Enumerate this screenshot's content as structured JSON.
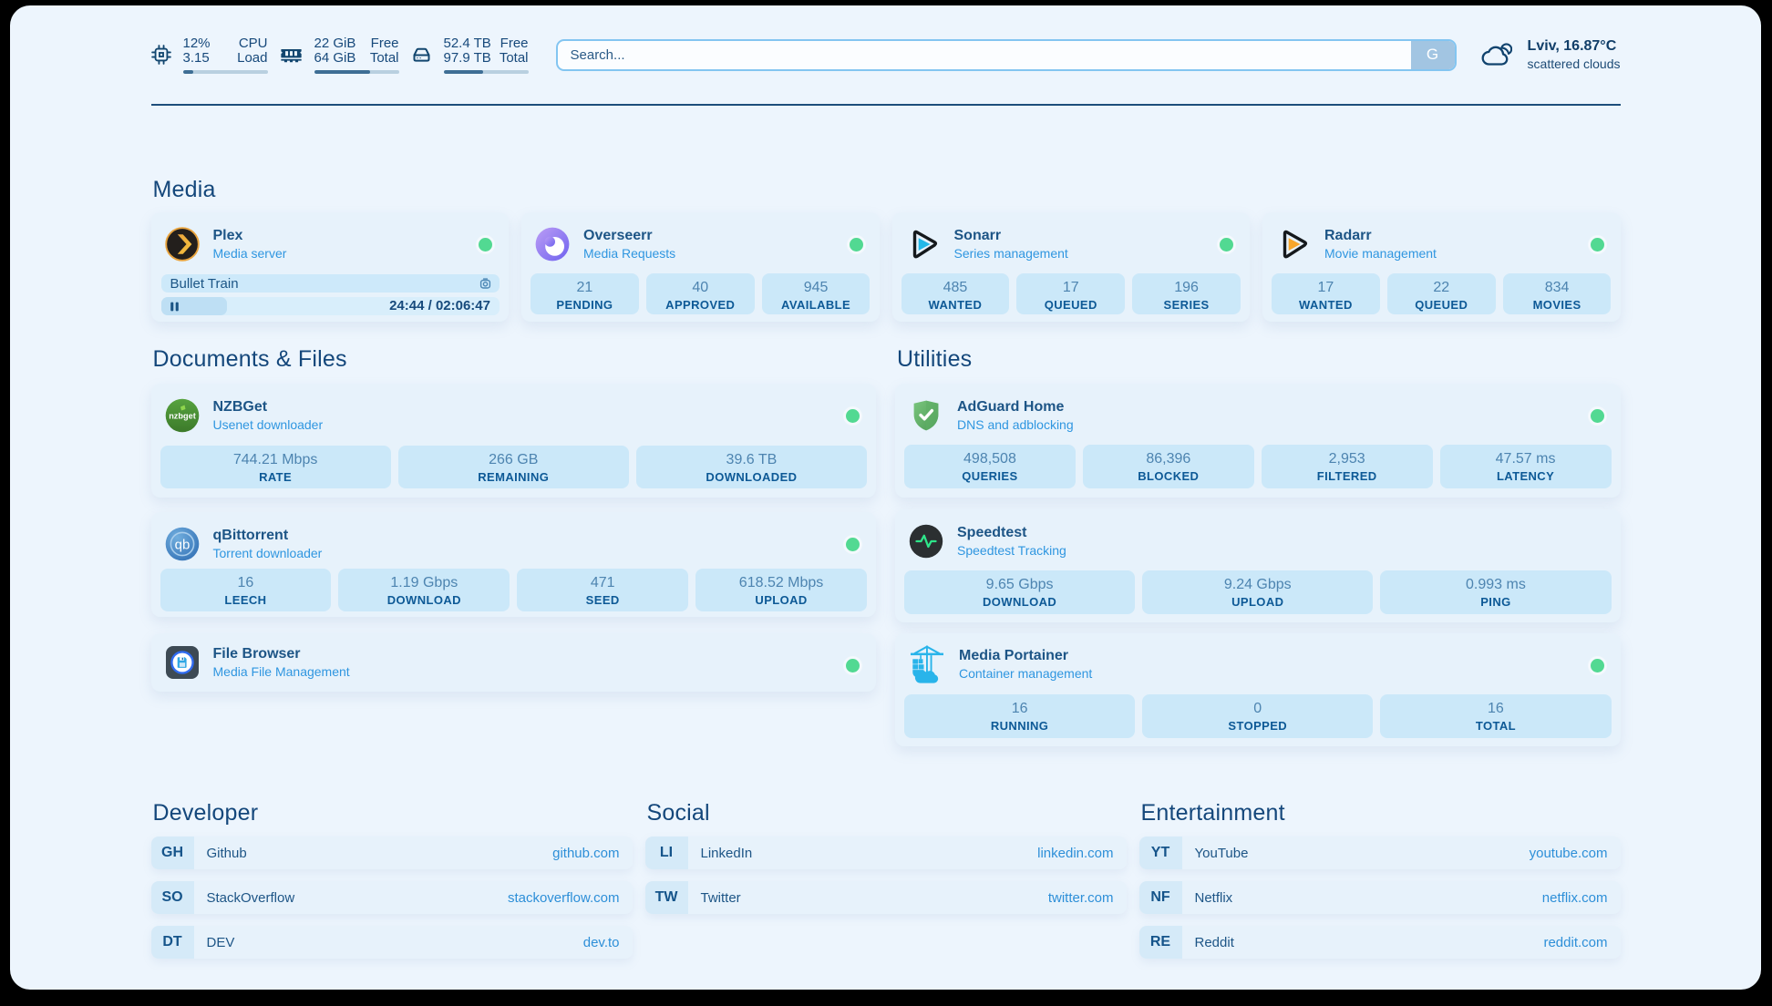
{
  "header": {
    "cpu": {
      "value1": "12%",
      "label1": "CPU",
      "value2": "3.15",
      "label2": "Load",
      "progress_pct": 12
    },
    "ram": {
      "value1": "22 GiB",
      "label1": "Free",
      "value2": "64 GiB",
      "label2": "Total",
      "progress_pct": 66
    },
    "disk": {
      "value1": "52.4 TB",
      "label1": "Free",
      "value2": "97.9 TB",
      "label2": "Total",
      "progress_pct": 46.5
    },
    "search": {
      "placeholder": "Search...",
      "button_label": "G"
    },
    "weather": {
      "location_temp": "Lviv, 16.87°C",
      "condition": "scattered clouds"
    }
  },
  "sections": {
    "media": {
      "title": "Media",
      "plex": {
        "title": "Plex",
        "subtitle": "Media server",
        "now_playing": "Bullet Train",
        "time_display": "24:44 / 02:06:47",
        "progress_pct": 19.5,
        "status": "online"
      },
      "overseerr": {
        "title": "Overseerr",
        "subtitle": "Media Requests",
        "status": "online",
        "stats": [
          {
            "value": "21",
            "label": "PENDING"
          },
          {
            "value": "40",
            "label": "APPROVED"
          },
          {
            "value": "945",
            "label": "AVAILABLE"
          }
        ]
      },
      "sonarr": {
        "title": "Sonarr",
        "subtitle": "Series management",
        "status": "online",
        "stats": [
          {
            "value": "485",
            "label": "WANTED"
          },
          {
            "value": "17",
            "label": "QUEUED"
          },
          {
            "value": "196",
            "label": "SERIES"
          }
        ]
      },
      "radarr": {
        "title": "Radarr",
        "subtitle": "Movie management",
        "status": "online",
        "stats": [
          {
            "value": "17",
            "label": "WANTED"
          },
          {
            "value": "22",
            "label": "QUEUED"
          },
          {
            "value": "834",
            "label": "MOVIES"
          }
        ]
      }
    },
    "documents": {
      "title": "Documents & Files",
      "nzbget": {
        "title": "NZBGet",
        "subtitle": "Usenet downloader",
        "status": "online",
        "stats": [
          {
            "value": "744.21 Mbps",
            "label": "RATE"
          },
          {
            "value": "266 GB",
            "label": "REMAINING"
          },
          {
            "value": "39.6 TB",
            "label": "DOWNLOADED"
          }
        ]
      },
      "qbittorrent": {
        "title": "qBittorrent",
        "subtitle": "Torrent downloader",
        "status": "online",
        "stats": [
          {
            "value": "16",
            "label": "LEECH"
          },
          {
            "value": "1.19 Gbps",
            "label": "DOWNLOAD"
          },
          {
            "value": "471",
            "label": "SEED"
          },
          {
            "value": "618.52 Mbps",
            "label": "UPLOAD"
          }
        ]
      },
      "filebrowser": {
        "title": "File Browser",
        "subtitle": "Media File Management",
        "status": "online"
      }
    },
    "utilities": {
      "title": "Utilities",
      "adguard": {
        "title": "AdGuard Home",
        "subtitle": "DNS and adblocking",
        "status": "online",
        "stats": [
          {
            "value": "498,508",
            "label": "QUERIES"
          },
          {
            "value": "86,396",
            "label": "BLOCKED"
          },
          {
            "value": "2,953",
            "label": "FILTERED"
          },
          {
            "value": "47.57 ms",
            "label": "LATENCY"
          }
        ]
      },
      "speedtest": {
        "title": "Speedtest",
        "subtitle": "Speedtest Tracking",
        "status": "online",
        "stats": [
          {
            "value": "9.65 Gbps",
            "label": "DOWNLOAD"
          },
          {
            "value": "9.24 Gbps",
            "label": "UPLOAD"
          },
          {
            "value": "0.993 ms",
            "label": "PING"
          }
        ]
      },
      "portainer": {
        "title": "Media Portainer",
        "subtitle": "Container management",
        "status": "online",
        "stats": [
          {
            "value": "16",
            "label": "RUNNING"
          },
          {
            "value": "0",
            "label": "STOPPED"
          },
          {
            "value": "16",
            "label": "TOTAL"
          }
        ]
      }
    },
    "bookmarks": [
      {
        "title": "Developer",
        "links": [
          {
            "abbr": "GH",
            "name": "Github",
            "url": "github.com"
          },
          {
            "abbr": "SO",
            "name": "StackOverflow",
            "url": "stackoverflow.com"
          },
          {
            "abbr": "DT",
            "name": "DEV",
            "url": "dev.to"
          }
        ]
      },
      {
        "title": "Social",
        "links": [
          {
            "abbr": "LI",
            "name": "LinkedIn",
            "url": "linkedin.com"
          },
          {
            "abbr": "TW",
            "name": "Twitter",
            "url": "twitter.com"
          }
        ]
      },
      {
        "title": "Entertainment",
        "links": [
          {
            "abbr": "YT",
            "name": "YouTube",
            "url": "youtube.com"
          },
          {
            "abbr": "NF",
            "name": "Netflix",
            "url": "netflix.com"
          },
          {
            "abbr": "RE",
            "name": "Reddit",
            "url": "reddit.com"
          }
        ]
      }
    ]
  },
  "colors": {
    "page_background": "#edf5fd",
    "card_background": "#e7f2fb",
    "stat_background": "#cbe8f9",
    "accent_navy": "#17497b",
    "accent_blue": "#2f96e0",
    "status_online": "#52d992"
  }
}
